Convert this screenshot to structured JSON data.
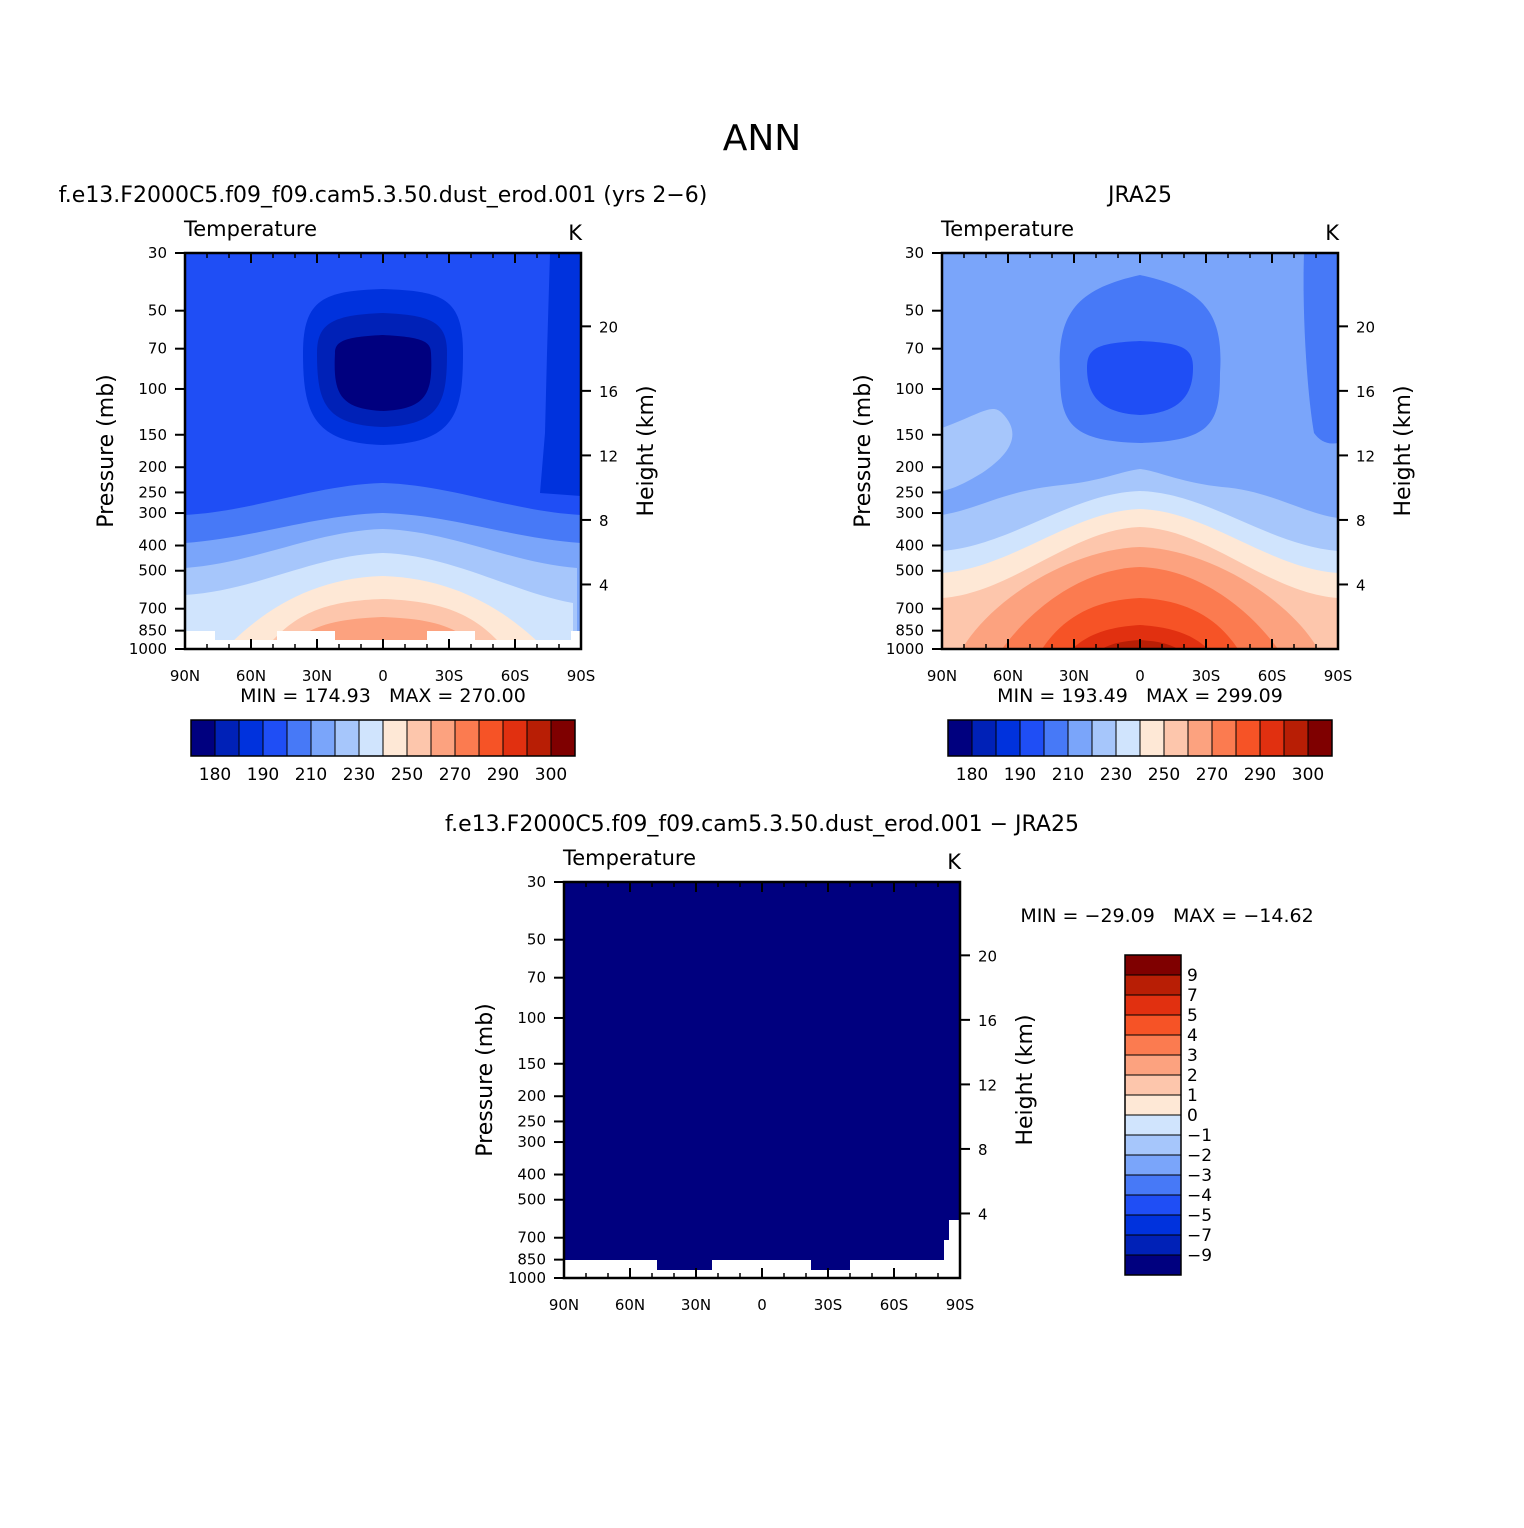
{
  "figure": {
    "main_title": "ANN"
  },
  "panels": [
    {
      "id": "model",
      "title": "f.e13.F2000C5.f09_f09.cam5.3.50.dust_erod.001 (yrs 2−6)",
      "left_string": "Temperature",
      "right_string": "K",
      "stats": "MIN = 174.93   MAX = 270.00"
    },
    {
      "id": "obs",
      "title": "JRA25",
      "left_string": "Temperature",
      "right_string": "K",
      "stats": "MIN = 193.49   MAX = 299.09"
    },
    {
      "id": "diff",
      "title": "f.e13.F2000C5.f09_f09.cam5.3.50.dust_erod.001 − JRA25",
      "left_string": "Temperature",
      "right_string": "K",
      "stats": "MIN = −29.09   MAX = −14.62"
    }
  ],
  "chart_data": [
    {
      "type": "heatmap",
      "panel": "model",
      "variable": "Temperature",
      "units": "K",
      "title": "f.e13.F2000C5.f09_f09.cam5.3.50.dust_erod.001 (yrs 2−6)",
      "xlabel": "",
      "ylabel": "Pressure (mb)",
      "y2label": "Height (km)",
      "x_ticks": [
        "90N",
        "60N",
        "30N",
        "0",
        "30S",
        "60S",
        "90S"
      ],
      "xlim": [
        90,
        -90
      ],
      "y_ticks": [
        30,
        50,
        70,
        100,
        150,
        200,
        250,
        300,
        400,
        500,
        700,
        850,
        1000
      ],
      "ylim": [
        1000,
        30
      ],
      "y2_ticks": [
        4,
        8,
        12,
        16,
        20
      ],
      "min": 174.93,
      "max": 270.0,
      "colorbar_labels": [
        "180",
        "190",
        "210",
        "230",
        "250",
        "270",
        "290",
        "300"
      ],
      "colorbar_levels": [
        180,
        185,
        190,
        200,
        210,
        220,
        230,
        240,
        250,
        260,
        270,
        280,
        290,
        295,
        300
      ]
    },
    {
      "type": "heatmap",
      "panel": "obs",
      "variable": "Temperature",
      "units": "K",
      "title": "JRA25",
      "xlabel": "",
      "ylabel": "Pressure (mb)",
      "y2label": "Height (km)",
      "x_ticks": [
        "90N",
        "60N",
        "30N",
        "0",
        "30S",
        "60S",
        "90S"
      ],
      "xlim": [
        90,
        -90
      ],
      "y_ticks": [
        30,
        50,
        70,
        100,
        150,
        200,
        250,
        300,
        400,
        500,
        700,
        850,
        1000
      ],
      "ylim": [
        1000,
        30
      ],
      "y2_ticks": [
        4,
        8,
        12,
        16,
        20
      ],
      "min": 193.49,
      "max": 299.09,
      "colorbar_labels": [
        "180",
        "190",
        "210",
        "230",
        "250",
        "270",
        "290",
        "300"
      ],
      "colorbar_levels": [
        180,
        185,
        190,
        200,
        210,
        220,
        230,
        240,
        250,
        260,
        270,
        280,
        290,
        295,
        300
      ]
    },
    {
      "type": "heatmap",
      "panel": "diff",
      "variable": "Temperature",
      "units": "K",
      "title": "f.e13.F2000C5.f09_f09.cam5.3.50.dust_erod.001 − JRA25",
      "xlabel": "",
      "ylabel": "Pressure (mb)",
      "y2label": "Height (km)",
      "x_ticks": [
        "90N",
        "60N",
        "30N",
        "0",
        "30S",
        "60S",
        "90S"
      ],
      "xlim": [
        90,
        -90
      ],
      "y_ticks": [
        30,
        50,
        70,
        100,
        150,
        200,
        250,
        300,
        400,
        500,
        700,
        850,
        1000
      ],
      "ylim": [
        1000,
        30
      ],
      "y2_ticks": [
        4,
        8,
        12,
        16,
        20
      ],
      "min": -29.09,
      "max": -14.62,
      "colorbar_labels": [
        "9",
        "7",
        "5",
        "4",
        "3",
        "2",
        "1",
        "0",
        "−1",
        "−2",
        "−3",
        "−4",
        "−5",
        "−7",
        "−9"
      ],
      "colorbar_levels": [
        -9,
        -7,
        -5,
        -4,
        -3,
        -2,
        -1,
        0,
        1,
        2,
        3,
        4,
        5,
        7,
        9
      ]
    }
  ],
  "palette": [
    "#00007f",
    "#0021b7",
    "#0032dd",
    "#1f4ef5",
    "#4779f7",
    "#7aa5fa",
    "#a6c6fb",
    "#d0e4fd",
    "#fee8d6",
    "#fdc6ac",
    "#fca27f",
    "#fb7b50",
    "#f65326",
    "#e13010",
    "#b81e05",
    "#7f0000"
  ]
}
